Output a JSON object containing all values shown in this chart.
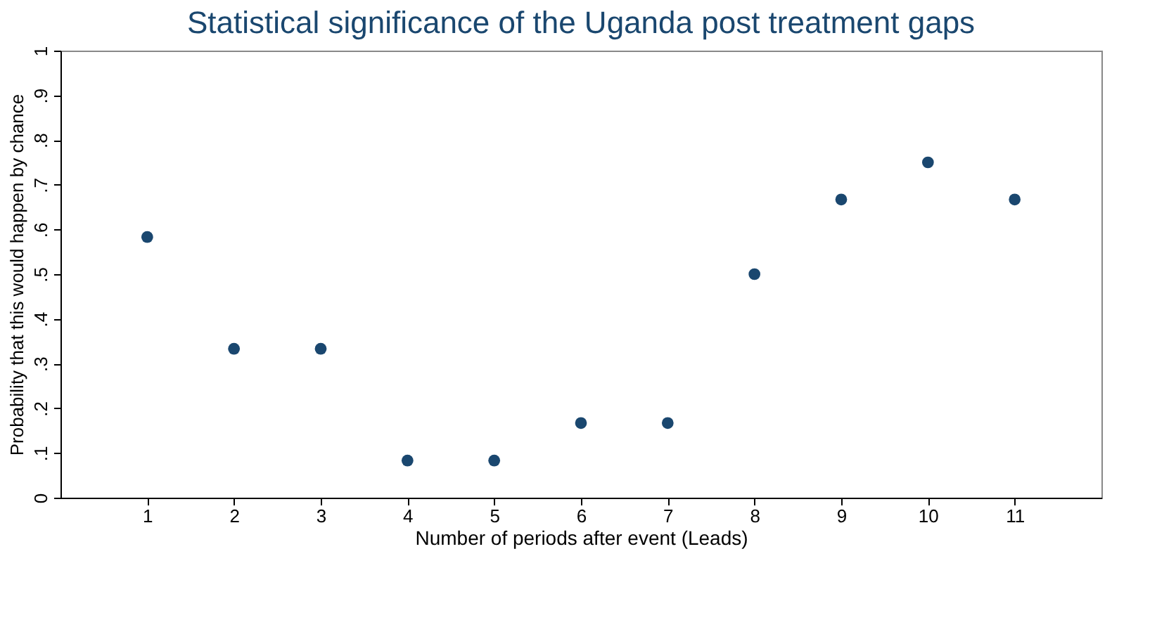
{
  "chart_data": {
    "type": "scatter",
    "title": "Statistical significance of the Uganda post treatment gaps",
    "xlabel": "Number of periods after event (Leads)",
    "ylabel": "Probability that this would happen by chance",
    "x": [
      1,
      2,
      3,
      4,
      5,
      6,
      7,
      8,
      9,
      10,
      11
    ],
    "series": [
      {
        "color": "#1a476f",
        "values": [
          0.583,
          0.333,
          0.333,
          0.083,
          0.083,
          0.167,
          0.167,
          0.5,
          0.667,
          0.75,
          0.667
        ]
      }
    ],
    "xlim": [
      0,
      12
    ],
    "xticks": [
      1,
      2,
      3,
      4,
      5,
      6,
      7,
      8,
      9,
      10,
      11
    ],
    "ylim": [
      0,
      1
    ],
    "yticks": [
      0,
      {
        "value": 0.1,
        "label": ".1"
      },
      {
        "value": 0.2,
        "label": ".2"
      },
      {
        "value": 0.3,
        "label": ".3"
      },
      {
        "value": 0.4,
        "label": ".4"
      },
      {
        "value": 0.5,
        "label": ".5"
      },
      {
        "value": 0.6,
        "label": ".6"
      },
      {
        "value": 0.7,
        "label": ".7"
      },
      {
        "value": 0.8,
        "label": ".8"
      },
      {
        "value": 0.9,
        "label": ".9"
      },
      1
    ],
    "grid": false,
    "marker": "circle"
  }
}
